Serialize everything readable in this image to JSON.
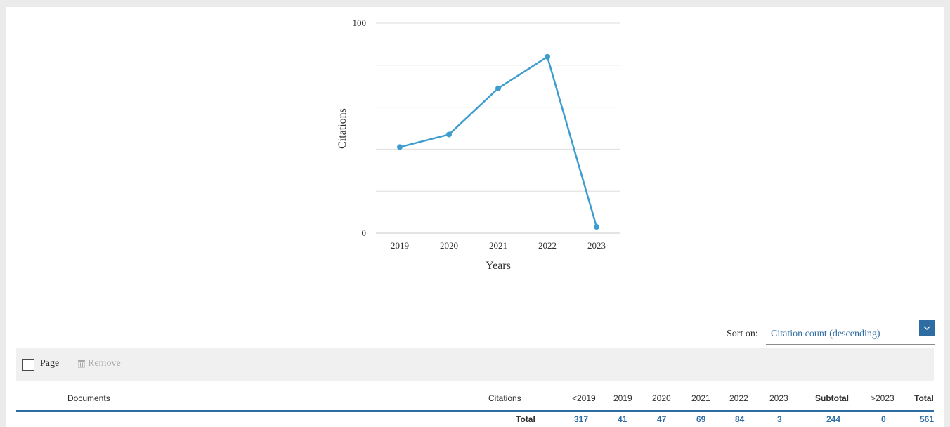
{
  "chart_data": {
    "type": "line",
    "x": [
      "2019",
      "2020",
      "2021",
      "2022",
      "2023"
    ],
    "series": [
      {
        "values": [
          41,
          47,
          69,
          84,
          3
        ]
      }
    ],
    "xlabel": "Years",
    "ylabel": "Citations",
    "ylim": [
      0,
      100
    ],
    "yticks_labeled": [
      "0",
      "100"
    ],
    "grid": true,
    "line_color": "#3d9dcf"
  },
  "sort": {
    "label": "Sort on:",
    "value": "Citation count (descending)"
  },
  "toolbar": {
    "page_label": "Page",
    "remove_label": "Remove"
  },
  "table": {
    "columns": {
      "documents": "Documents",
      "citations": "Citations",
      "before": "<2019",
      "y2019": "2019",
      "y2020": "2020",
      "y2021": "2021",
      "y2022": "2022",
      "y2023": "2023",
      "subtotal": "Subtotal",
      "after": ">2023",
      "total": "Total"
    },
    "total_row": {
      "label": "Total",
      "before": "317",
      "y2019": "41",
      "y2020": "47",
      "y2021": "69",
      "y2022": "84",
      "y2023": "3",
      "subtotal": "244",
      "after": "0",
      "total": "561"
    }
  },
  "colors": {
    "accent": "#2e6da4",
    "line": "#3d9dcf"
  }
}
